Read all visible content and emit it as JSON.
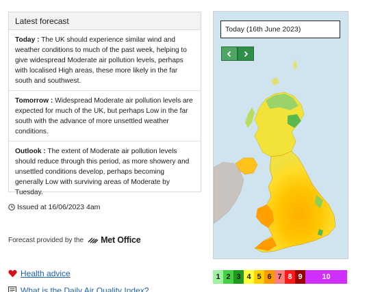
{
  "forecast": {
    "title": "Latest forecast",
    "sections": [
      {
        "label": "Today :",
        "text": "The UK should experience similar wind and weather conditions to much of the past week, helping to give widespread Moderate air pollution levels, perhaps with localised High areas, these more likely in the far south and southwest."
      },
      {
        "label": "Tomorrow :",
        "text": "Widespread Moderate air pollution levels are expected for much of the UK, but perhaps Low in the far south with the advance of more unsettled weather conditions."
      },
      {
        "label": "Outlook :",
        "text": "The extent of Moderate air pollution levels should reduce through this period, as more showery and unsettled conditions develop, perhaps becoming generally Low with surviving areas of Moderate by Tuesday."
      }
    ]
  },
  "issued": "Issued at 16/06/2023 4am",
  "provided_by": "Forecast provided by the",
  "provider_name": "Met Office",
  "links": {
    "health_advice": "Health advice",
    "what_is": "What is the Daily Air Quality Index?"
  },
  "map": {
    "date_label": "Today (16th June 2023)",
    "prev_icon": "chevron-left-icon",
    "next_icon": "chevron-right-icon"
  },
  "scale": [
    {
      "label": "1",
      "color": "#9ff29f",
      "text_color": "#1a1a1a"
    },
    {
      "label": "2",
      "color": "#46d046",
      "text_color": "#1a1a1a"
    },
    {
      "label": "3",
      "color": "#1f9b1f",
      "text_color": "#1a1a1a"
    },
    {
      "label": "4",
      "color": "#ffff3b",
      "text_color": "#1a1a1a"
    },
    {
      "label": "5",
      "color": "#ffd000",
      "text_color": "#1a1a1a"
    },
    {
      "label": "6",
      "color": "#ff9a00",
      "text_color": "#1a1a1a"
    },
    {
      "label": "7",
      "color": "#ff7f7f",
      "text_color": "#1a1a1a"
    },
    {
      "label": "8",
      "color": "#ff1a1a",
      "text_color": "#ffffff"
    },
    {
      "label": "9",
      "color": "#9a0000",
      "text_color": "#ffffff"
    },
    {
      "label": "10",
      "color": "#cf30ff",
      "text_color": "#ffffff"
    }
  ]
}
